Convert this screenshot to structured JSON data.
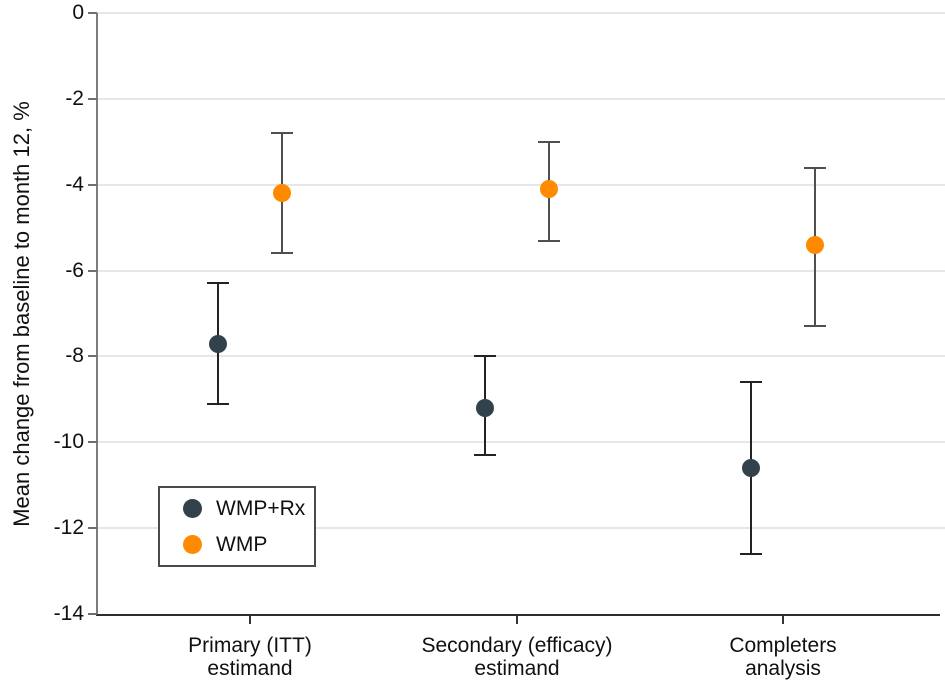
{
  "chart_data": {
    "type": "scatter",
    "subtype": "point-estimates-with-95ci-error-bars",
    "title": "",
    "xlabel": "",
    "ylabel": "Mean change from baseline to month 12, %",
    "ylim": [
      -14,
      0
    ],
    "y_ticks": [
      0,
      -2,
      -4,
      -6,
      -8,
      -10,
      -12,
      -14
    ],
    "y_tick_labels": [
      "0",
      "-2",
      "-4",
      "-6",
      "-8",
      "-10",
      "-12",
      "-14"
    ],
    "grid": "horizontal",
    "legend_position": "inside-lower-left",
    "categories": [
      [
        "Primary (ITT)",
        "estimand"
      ],
      [
        "Secondary (efficacy)",
        "estimand"
      ],
      [
        "Completers",
        "analysis"
      ]
    ],
    "series": [
      {
        "name": "WMP+Rx",
        "color": "#31424C",
        "error_bar_color": "#232323",
        "means": [
          -7.7,
          -9.2,
          -10.6
        ],
        "ci_low": [
          -9.1,
          -10.3,
          -12.6
        ],
        "ci_high": [
          -6.3,
          -8.0,
          -8.6
        ]
      },
      {
        "name": "WMP",
        "color": "#FF8A00",
        "error_bar_color": "#4f4f4f",
        "means": [
          -4.2,
          -4.1,
          -5.4
        ],
        "ci_low": [
          -5.6,
          -5.3,
          -7.3
        ],
        "ci_high": [
          -2.8,
          -3.0,
          -3.6
        ]
      }
    ]
  },
  "colors": {
    "gridline": "#e7e7e7",
    "y_axis": "#7d7d7d",
    "x_axis": "#2e2e2e",
    "text": "#111111",
    "legend_border": "#4a4a4a"
  }
}
